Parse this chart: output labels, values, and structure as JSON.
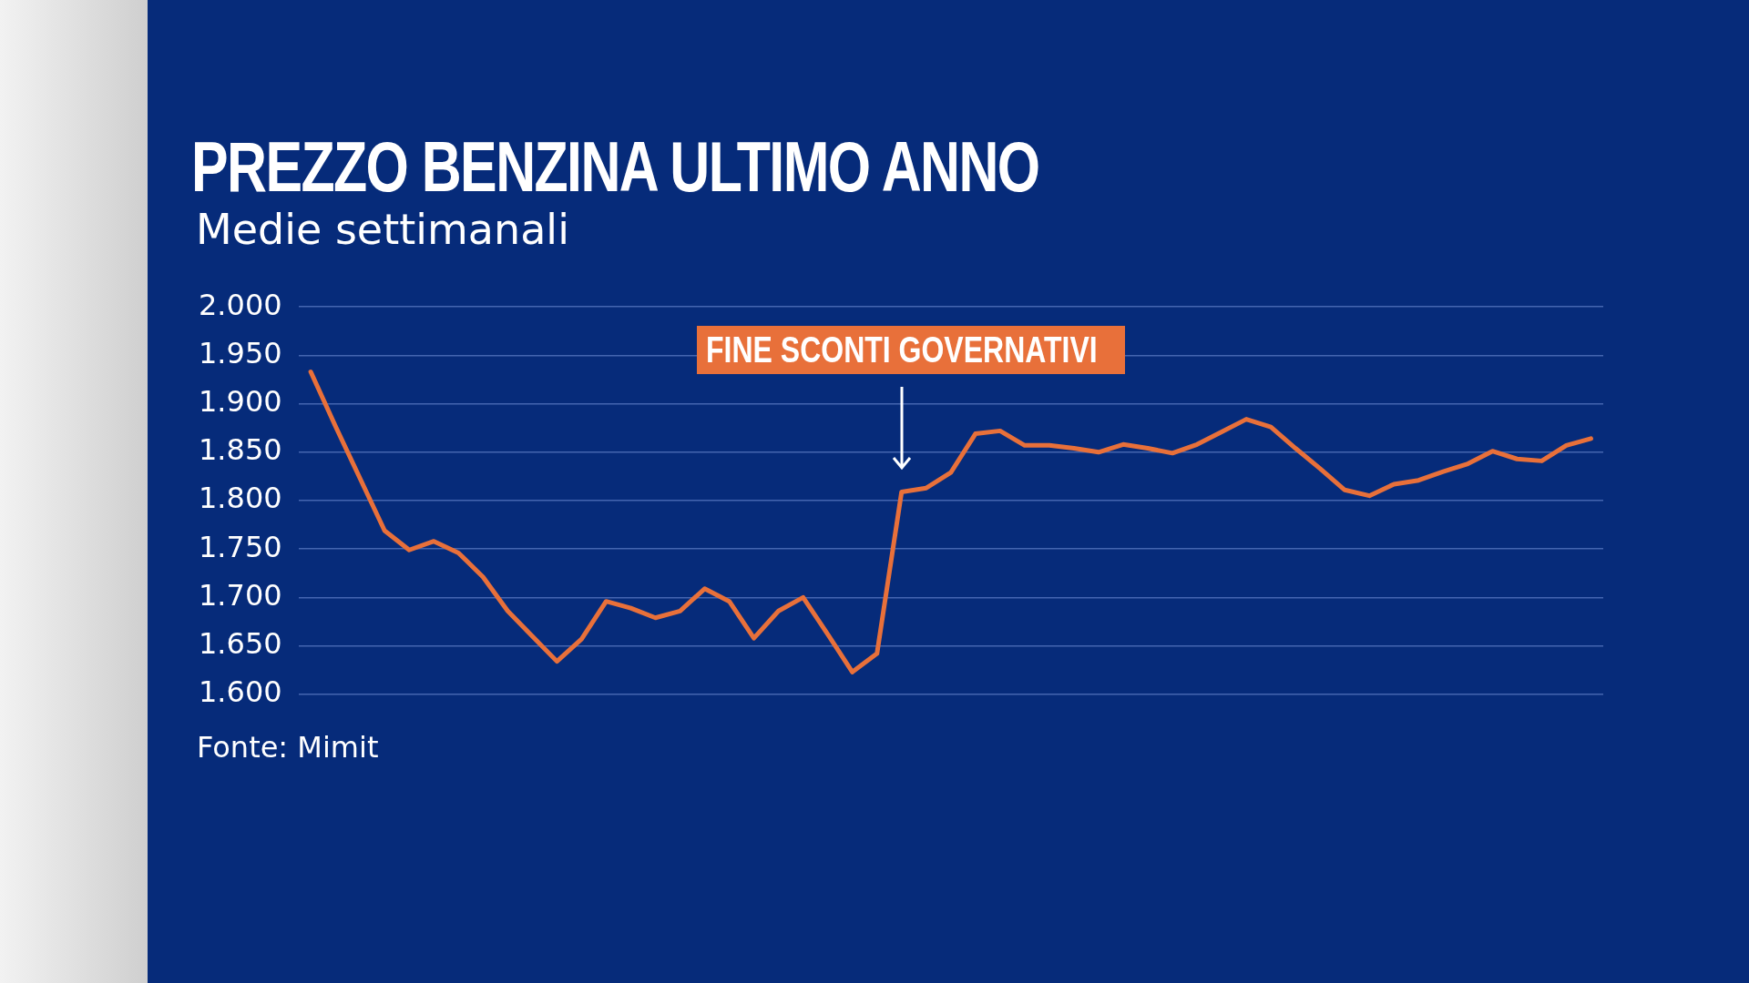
{
  "chart_data": {
    "type": "line",
    "title": "PREZZO BENZINA ULTIMO ANNO",
    "subtitle": "Medie settimanali",
    "categories": [
      null,
      null,
      null,
      null,
      null,
      null,
      null,
      null,
      null,
      null,
      null,
      null,
      null,
      null,
      null,
      null,
      null,
      null,
      null,
      null,
      null,
      null,
      null,
      null,
      null,
      null,
      null,
      null,
      null,
      null,
      null,
      null,
      null,
      null,
      null,
      null,
      null,
      null,
      null,
      null,
      null,
      null,
      null,
      null,
      null,
      null,
      null,
      null,
      null,
      null,
      null,
      null,
      null
    ],
    "series": [
      {
        "color": "#e8703a",
        "values": [
          1.933,
          1.877,
          1.823,
          1.769,
          1.749,
          1.758,
          1.746,
          1.721,
          1.686,
          1.66,
          1.634,
          1.657,
          1.696,
          1.689,
          1.679,
          1.686,
          1.709,
          1.696,
          1.658,
          1.686,
          1.7,
          1.662,
          1.623,
          1.642,
          1.809,
          1.813,
          1.829,
          1.869,
          1.872,
          1.857,
          1.857,
          1.854,
          1.85,
          1.858,
          1.854,
          1.849,
          1.858,
          1.871,
          1.884,
          1.876,
          1.854,
          1.833,
          1.811,
          1.805,
          1.817,
          1.821,
          1.83,
          1.838,
          1.851,
          1.843,
          1.841,
          1.857,
          1.864
        ]
      }
    ],
    "ylim": [
      1.6,
      2.0
    ],
    "yticks": [
      {
        "value": 1.6,
        "label": "1.600"
      },
      {
        "value": 1.65,
        "label": "1.650"
      },
      {
        "value": 1.7,
        "label": "1.700"
      },
      {
        "value": 1.75,
        "label": "1.750"
      },
      {
        "value": 1.8,
        "label": "1.800"
      },
      {
        "value": 1.85,
        "label": "1.850"
      },
      {
        "value": 1.9,
        "label": "1.900"
      },
      {
        "value": 1.95,
        "label": "1.950"
      },
      {
        "value": 2.0,
        "label": "2.000"
      }
    ],
    "grid": "y",
    "tick_labels": "y",
    "legend": false,
    "marker": "none",
    "line_style": "solid",
    "annotations": [
      "FINE SCONTI GOVERNATIVI",
      "Fonte: Mimit"
    ]
  }
}
